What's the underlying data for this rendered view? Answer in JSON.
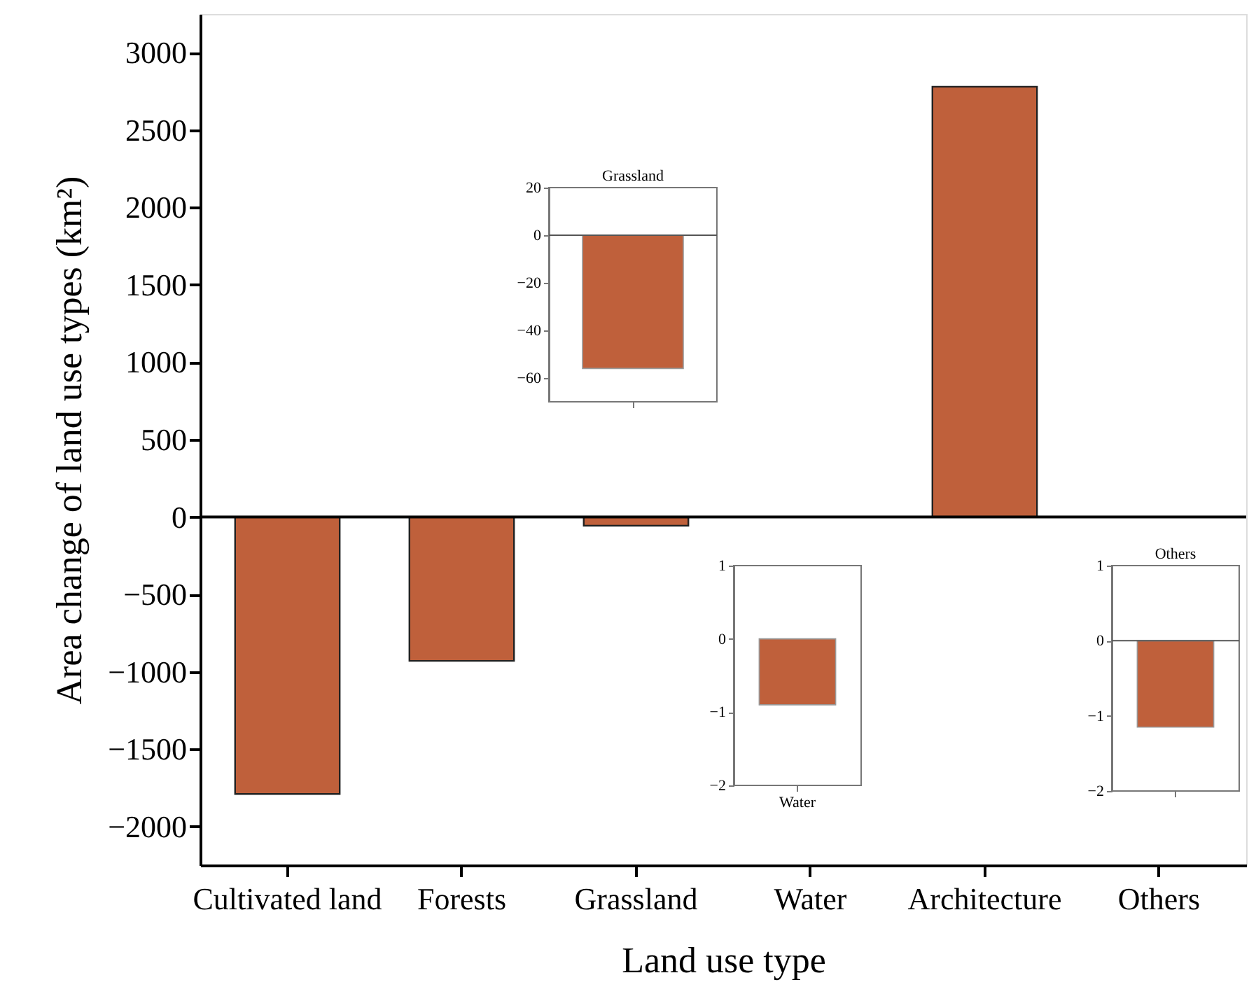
{
  "chart_data": [
    {
      "type": "bar",
      "xlabel": "Land use type",
      "ylabel": "Area change of land use types (km²)",
      "categories": [
        "Cultivated land",
        "Forests",
        "Grassland",
        "Water",
        "Architecture",
        "Others"
      ],
      "values": [
        -1790,
        -930,
        -56,
        -0.9,
        2780,
        -1.15
      ],
      "color": "#bf603b",
      "ylim": [
        -2250,
        3250
      ],
      "yticks": [
        -2000,
        -1500,
        -1000,
        -500,
        0,
        500,
        1000,
        1500,
        2000,
        2500,
        3000
      ],
      "ref_lines": [
        {
          "axis": "y",
          "value": 0
        }
      ],
      "grid": false
    },
    {
      "type": "bar",
      "title": "Grassland",
      "categories": [
        null
      ],
      "values": [
        -56
      ],
      "color": "#bf603b",
      "ylim": [
        -70,
        20
      ],
      "yticks": [
        -60,
        -40,
        -20,
        0,
        20
      ],
      "ref_lines": [
        {
          "axis": "y",
          "value": 0
        }
      ],
      "grid": false
    },
    {
      "type": "bar",
      "categories": [
        "Water"
      ],
      "values": [
        -0.9
      ],
      "color": "#bf603b",
      "ylim": [
        -2,
        1
      ],
      "yticks": [
        -2,
        -1,
        0,
        1
      ],
      "grid": false
    },
    {
      "type": "bar",
      "title": "Others",
      "categories": [
        null
      ],
      "values": [
        -1.15
      ],
      "color": "#bf603b",
      "ylim": [
        -2,
        1
      ],
      "yticks": [
        -2,
        -1,
        0,
        1
      ],
      "ref_lines": [
        {
          "axis": "y",
          "value": 0
        }
      ],
      "grid": false
    }
  ]
}
